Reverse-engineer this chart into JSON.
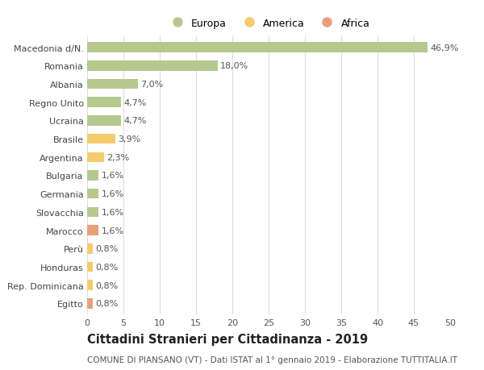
{
  "categories": [
    "Macedonia d/N.",
    "Romania",
    "Albania",
    "Regno Unito",
    "Ucraina",
    "Brasile",
    "Argentina",
    "Bulgaria",
    "Germania",
    "Slovacchia",
    "Marocco",
    "Perù",
    "Honduras",
    "Rep. Dominicana",
    "Egitto"
  ],
  "values": [
    46.9,
    18.0,
    7.0,
    4.7,
    4.7,
    3.9,
    2.3,
    1.6,
    1.6,
    1.6,
    1.6,
    0.8,
    0.8,
    0.8,
    0.8
  ],
  "labels": [
    "46,9%",
    "18,0%",
    "7,0%",
    "4,7%",
    "4,7%",
    "3,9%",
    "2,3%",
    "1,6%",
    "1,6%",
    "1,6%",
    "1,6%",
    "0,8%",
    "0,8%",
    "0,8%",
    "0,8%"
  ],
  "colors": [
    "#b5c98e",
    "#b5c98e",
    "#b5c98e",
    "#b5c98e",
    "#b5c98e",
    "#f5cb6b",
    "#f5cb6b",
    "#b5c98e",
    "#b5c98e",
    "#b5c98e",
    "#e8a07a",
    "#f5cb6b",
    "#f5cb6b",
    "#f5cb6b",
    "#e8a07a"
  ],
  "legend_labels": [
    "Europa",
    "America",
    "Africa"
  ],
  "legend_colors": [
    "#b5c98e",
    "#f5cb6b",
    "#e8a07a"
  ],
  "title": "Cittadini Stranieri per Cittadinanza - 2019",
  "subtitle": "COMUNE DI PIANSANO (VT) - Dati ISTAT al 1° gennaio 2019 - Elaborazione TUTTITALIA.IT",
  "xlim": [
    0,
    50
  ],
  "xticks": [
    0,
    5,
    10,
    15,
    20,
    25,
    30,
    35,
    40,
    45,
    50
  ],
  "background_color": "#ffffff",
  "grid_color": "#dddddd",
  "bar_height": 0.55,
  "label_fontsize": 8,
  "tick_fontsize": 8,
  "title_fontsize": 10.5,
  "subtitle_fontsize": 7.5
}
